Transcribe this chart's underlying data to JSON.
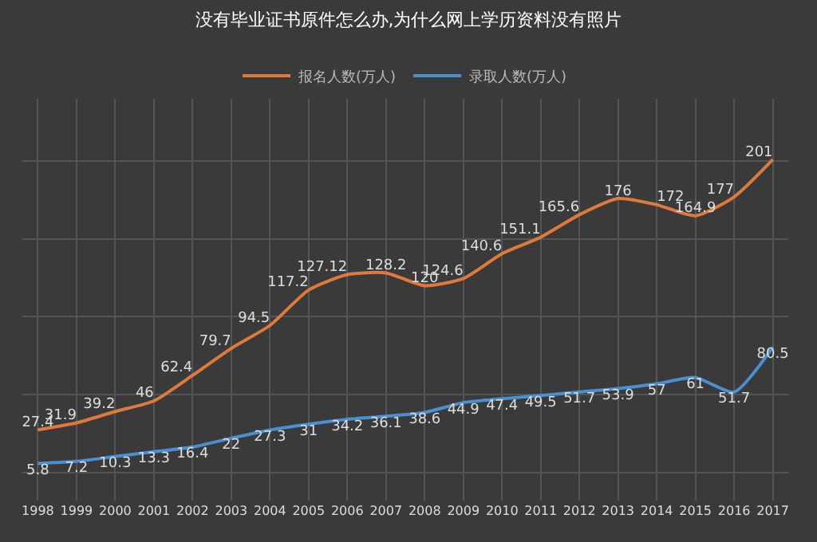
{
  "chart_data": {
    "type": "line",
    "title": "没有毕业证书原件怎么办,为什么网上学历资料没有照片",
    "categories": [
      "1998",
      "1999",
      "2000",
      "2001",
      "2002",
      "2003",
      "2004",
      "2005",
      "2006",
      "2007",
      "2008",
      "2009",
      "2010",
      "2011",
      "2012",
      "2013",
      "2014",
      "2015",
      "2016",
      "2017"
    ],
    "series": [
      {
        "name": "报名人数(万人)",
        "color": "#e07a3c",
        "values": [
          27.4,
          31.9,
          39.2,
          46,
          62.4,
          79.7,
          94.5,
          117.2,
          127.12,
          128.2,
          120,
          124.6,
          140.6,
          151.1,
          165.6,
          176,
          172,
          164.9,
          177,
          201
        ]
      },
      {
        "name": "录取人数(万人)",
        "color": "#4a8fd0",
        "values": [
          5.8,
          7.2,
          10.3,
          13.3,
          16.4,
          22,
          27.3,
          31,
          34.2,
          36.1,
          38.6,
          44.9,
          47.4,
          49.5,
          51.7,
          53.9,
          57,
          61,
          51.7,
          80.5
        ]
      }
    ],
    "ylim": [
      -18,
      240
    ],
    "yticks": [
      {
        "value": 0,
        "label": null
      },
      {
        "value": 50,
        "label": null
      },
      {
        "value": 100,
        "label": null
      },
      {
        "value": 150,
        "label": null
      },
      {
        "value": 200,
        "label": null
      }
    ],
    "tick_labels": "x",
    "grid": true,
    "legend": "top",
    "data_labels": true,
    "marker": "none",
    "line_style": "solid"
  }
}
